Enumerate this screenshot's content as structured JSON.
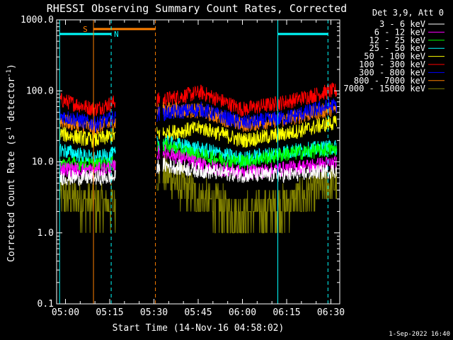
{
  "chart_data": {
    "type": "line",
    "title": "RHESSI Observing Summary Count Rates, Corrected",
    "xlabel": "Start Time (14-Nov-16 04:58:02)",
    "ylabel_prefix": "Corrected Count Rate (s",
    "ylabel_mid": " detector",
    "ylabel_suffix": ")",
    "ylabel_exponent": "-1",
    "yscale": "log",
    "ylim": [
      0.1,
      1000
    ],
    "xlim_minutes": [
      -1,
      95
    ],
    "x_unit": "minutes after 04:58:02",
    "grid": false,
    "legend_title": "Det 3,9, Att 0",
    "legend_position": "top-right",
    "x_ticks": [
      {
        "t": 2,
        "label": "05:00"
      },
      {
        "t": 17,
        "label": "05:15"
      },
      {
        "t": 32,
        "label": "05:30"
      },
      {
        "t": 47,
        "label": "05:45"
      },
      {
        "t": 62,
        "label": "06:00"
      },
      {
        "t": 77,
        "label": "06:15"
      },
      {
        "t": 92,
        "label": "06:30"
      }
    ],
    "y_ticks": [
      {
        "v": 0.1,
        "label": "0.1"
      },
      {
        "v": 1,
        "label": "1.0"
      },
      {
        "v": 10,
        "label": "10.0"
      },
      {
        "v": 100,
        "label": "100.0"
      },
      {
        "v": 1000,
        "label": "1000.0"
      }
    ],
    "gaps": [
      [
        19,
        33
      ],
      [
        34,
        35
      ]
    ],
    "series": [
      {
        "name": "3 - 6 keV",
        "color": "#ffffff",
        "points": [
          [
            0,
            6.0
          ],
          [
            12,
            6.0
          ],
          [
            19,
            6.0
          ],
          [
            35,
            9.0
          ],
          [
            48,
            7.5
          ],
          [
            62,
            6.5
          ],
          [
            77,
            6.5
          ],
          [
            92,
            7.5
          ]
        ]
      },
      {
        "name": "6 - 12 keV",
        "color": "#ff00ff",
        "points": [
          [
            0,
            8.0
          ],
          [
            12,
            7.5
          ],
          [
            19,
            8.5
          ],
          [
            35,
            14
          ],
          [
            48,
            9.0
          ],
          [
            62,
            7.0
          ],
          [
            77,
            8.0
          ],
          [
            92,
            9.5
          ]
        ]
      },
      {
        "name": "12 - 25 keV",
        "color": "#00ff00",
        "points": [
          [
            0,
            9.5
          ],
          [
            12,
            9.0
          ],
          [
            19,
            9.5
          ],
          [
            35,
            17
          ],
          [
            48,
            12
          ],
          [
            62,
            10
          ],
          [
            77,
            13
          ],
          [
            92,
            15
          ]
        ]
      },
      {
        "name": "25 - 50 keV",
        "color": "#00ffff",
        "points": [
          [
            0,
            15
          ],
          [
            12,
            11
          ],
          [
            19,
            13
          ],
          [
            35,
            19
          ],
          [
            48,
            15
          ],
          [
            62,
            11
          ],
          [
            77,
            14
          ],
          [
            92,
            16
          ]
        ]
      },
      {
        "name": "50 - 100 keV",
        "color": "#ffff00",
        "points": [
          [
            0,
            25
          ],
          [
            12,
            20
          ],
          [
            19,
            24
          ],
          [
            35,
            25
          ],
          [
            48,
            30
          ],
          [
            62,
            20
          ],
          [
            77,
            25
          ],
          [
            92,
            35
          ]
        ]
      },
      {
        "name": "100 - 300 keV",
        "color": "#ff0000",
        "points": [
          [
            0,
            75
          ],
          [
            12,
            55
          ],
          [
            19,
            70
          ],
          [
            35,
            75
          ],
          [
            48,
            95
          ],
          [
            62,
            55
          ],
          [
            77,
            70
          ],
          [
            92,
            100
          ]
        ]
      },
      {
        "name": "300 - 800 keV",
        "color": "#0000ff",
        "points": [
          [
            0,
            45
          ],
          [
            12,
            34
          ],
          [
            19,
            42
          ],
          [
            35,
            48
          ],
          [
            48,
            55
          ],
          [
            62,
            35
          ],
          [
            77,
            42
          ],
          [
            92,
            62
          ]
        ]
      },
      {
        "name": "800 - 7000 keV",
        "color": "#ff8000",
        "points": [
          [
            0,
            38
          ],
          [
            12,
            30
          ],
          [
            19,
            36
          ],
          [
            35,
            55
          ],
          [
            48,
            52
          ],
          [
            62,
            33
          ],
          [
            77,
            40
          ],
          [
            92,
            55
          ]
        ]
      },
      {
        "name": "7000 - 15000 keV",
        "color": "#808000",
        "points": [
          [
            0,
            3.5
          ],
          [
            12,
            2.5
          ],
          [
            19,
            2.5
          ],
          [
            35,
            7.0
          ],
          [
            48,
            3.0
          ],
          [
            62,
            1.8
          ],
          [
            77,
            2.5
          ],
          [
            92,
            5.0
          ]
        ]
      }
    ],
    "night_bars": [
      [
        0,
        17.5
      ],
      [
        74,
        91
      ]
    ],
    "night_bar_color": "#00ffff",
    "night_label": "N",
    "saa_bar": [
      11.5,
      32.5
    ],
    "saa_bar_color": "#ff8000",
    "saa_label": "S",
    "vlines": [
      {
        "t": 0,
        "color": "#00ffff",
        "style": "solid"
      },
      {
        "t": 17.5,
        "color": "#00ffff",
        "style": "dashed"
      },
      {
        "t": 74,
        "color": "#00ffff",
        "style": "solid"
      },
      {
        "t": 91,
        "color": "#00ffff",
        "style": "dashed"
      },
      {
        "t": 11.5,
        "color": "#ff8000",
        "style": "solid"
      },
      {
        "t": 32.5,
        "color": "#ff8000",
        "style": "dashed"
      }
    ],
    "footer": "1-Sep-2022 16:40"
  }
}
